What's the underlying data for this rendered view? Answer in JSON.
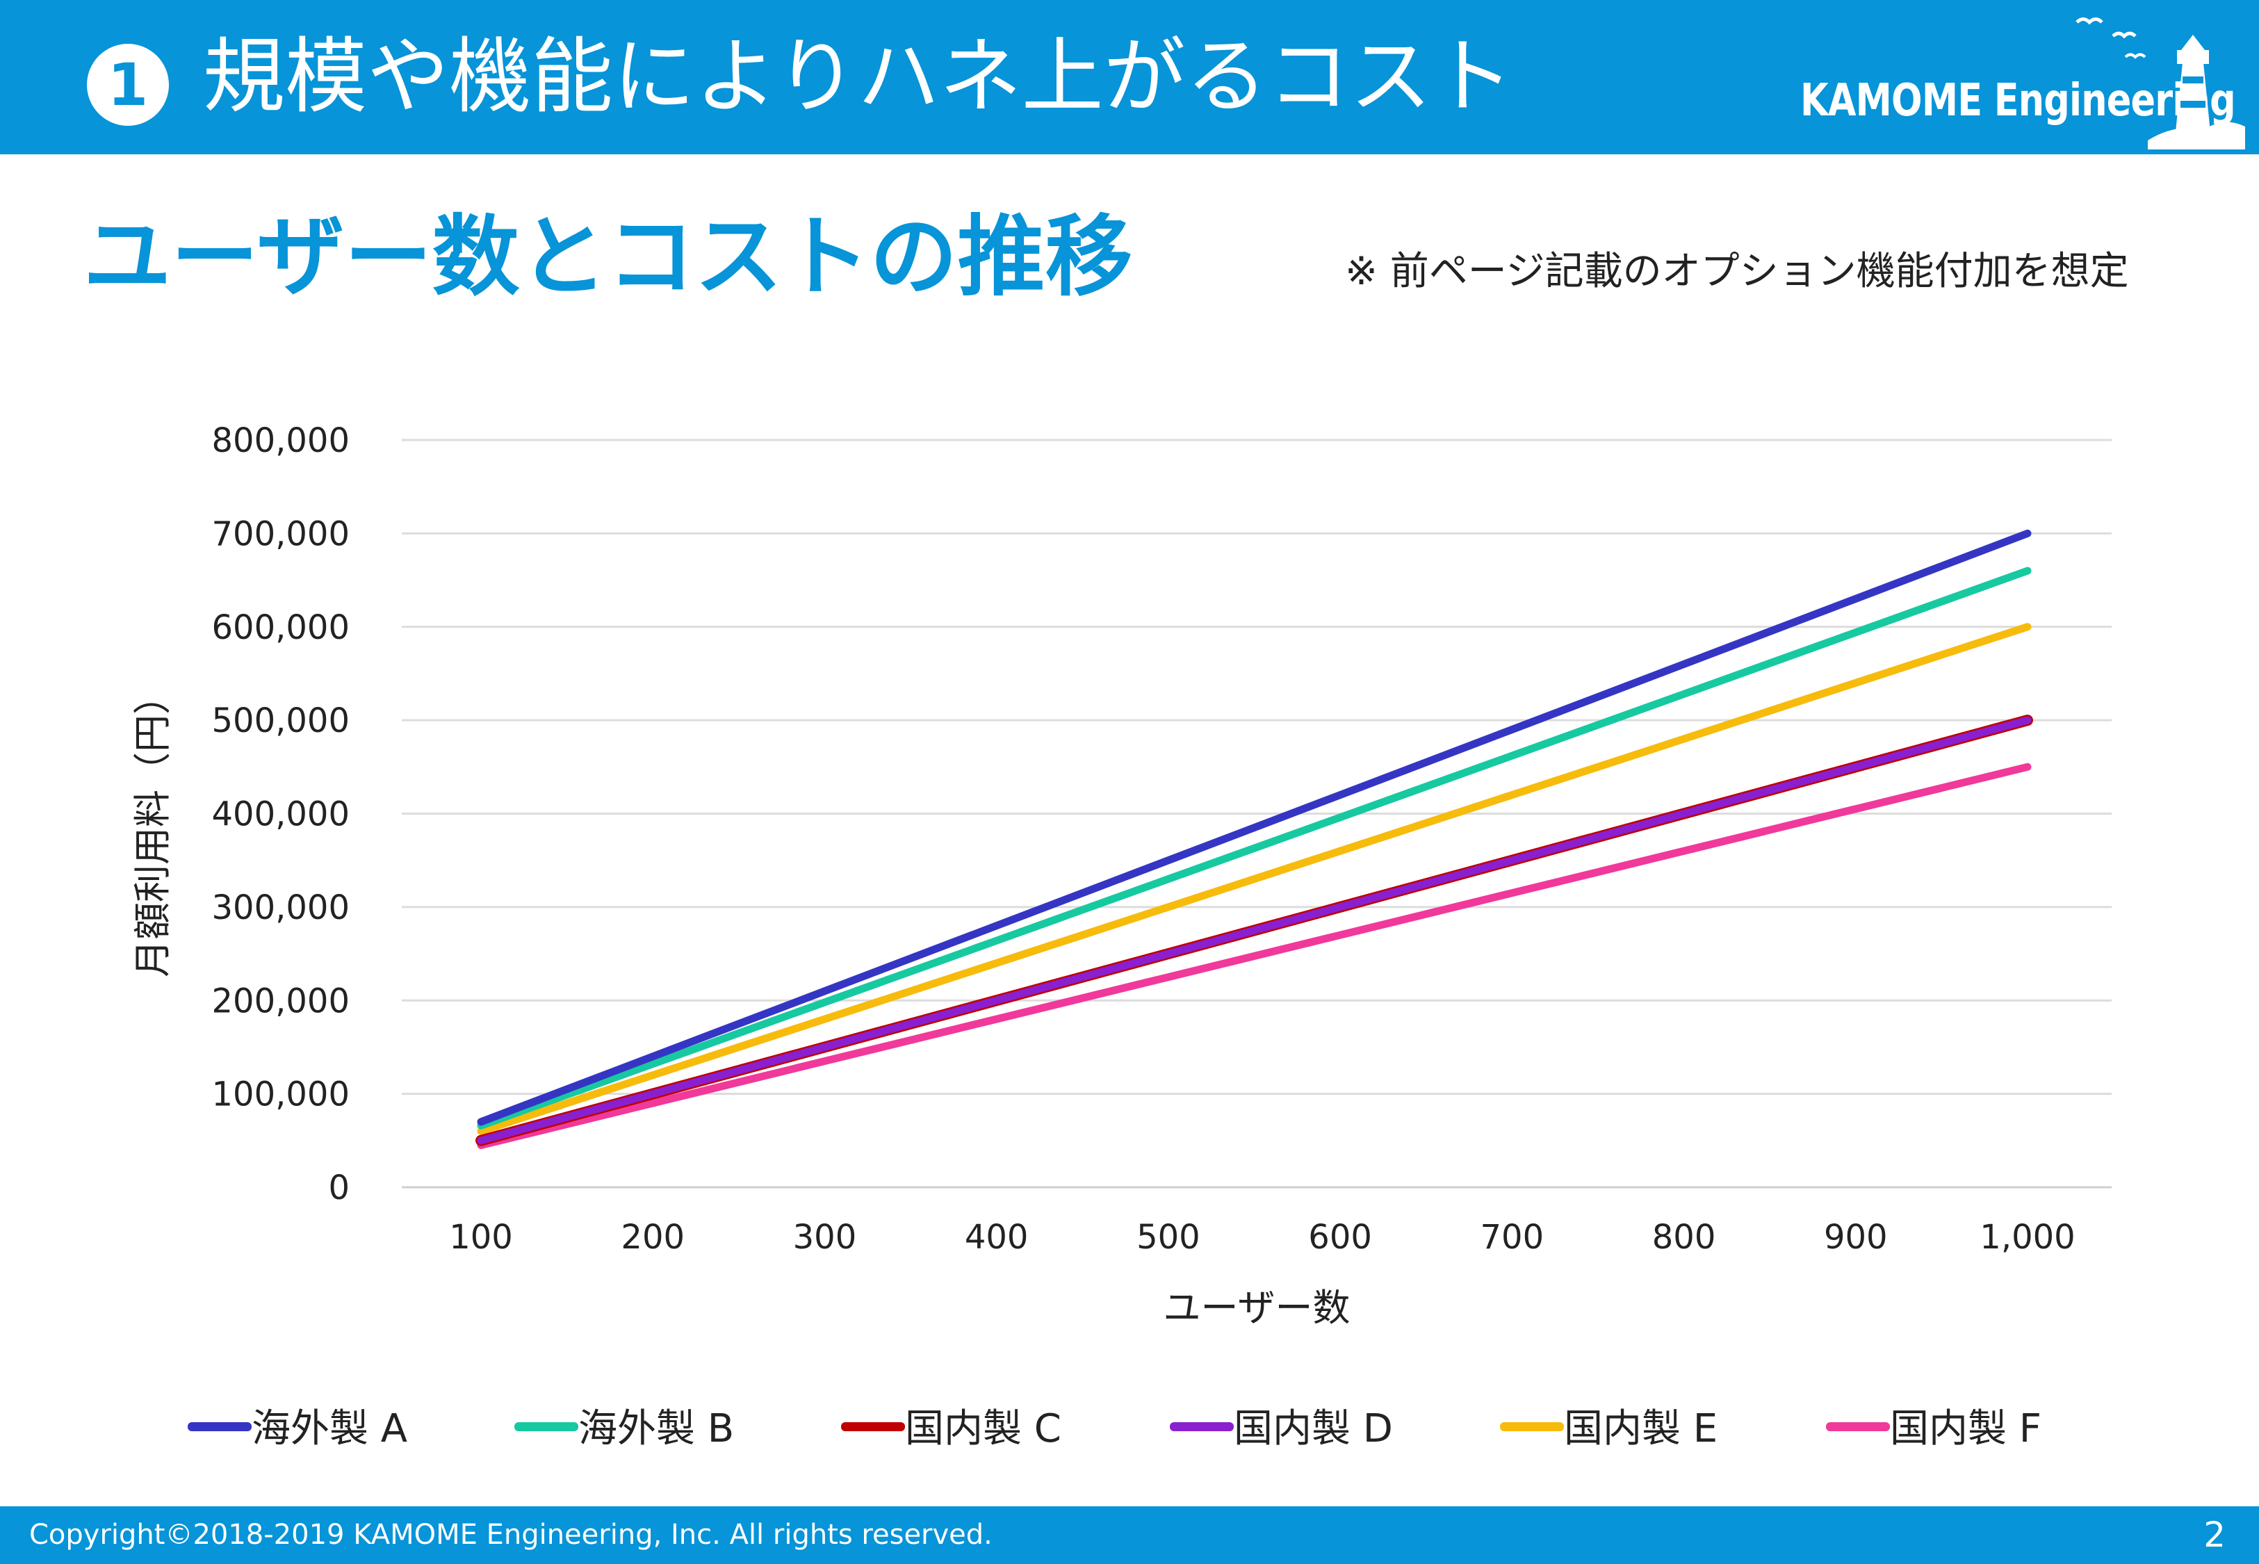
{
  "header": {
    "number": "1",
    "title": "規模や機能によりハネ上がるコスト",
    "logo_text": "KAMOME Engineering"
  },
  "section_title": "ユーザー数とコストの推移",
  "note": "※ 前ページ記載のオプション機能付加を想定",
  "chart_data": {
    "type": "line",
    "title": "",
    "xlabel": "ユーザー数",
    "ylabel": "月額利用料（円）",
    "x": [
      100,
      200,
      300,
      400,
      500,
      600,
      700,
      800,
      900,
      1000
    ],
    "x_tick_labels": [
      "100",
      "200",
      "300",
      "400",
      "500",
      "600",
      "700",
      "800",
      "900",
      "1,000"
    ],
    "y_tick_labels": [
      "0",
      "100,000",
      "200,000",
      "300,000",
      "400,000",
      "500,000",
      "600,000",
      "700,000",
      "800,000"
    ],
    "ylim": [
      0,
      800000
    ],
    "grid": true,
    "legend_position": "bottom",
    "series": [
      {
        "name": "海外製 A",
        "color": "#3535c4",
        "values": [
          70000,
          140000,
          210000,
          280000,
          350000,
          420000,
          490000,
          560000,
          630000,
          700000
        ]
      },
      {
        "name": "海外製 B",
        "color": "#17c9a0",
        "values": [
          66000,
          132000,
          198000,
          264000,
          330000,
          396000,
          462000,
          528000,
          594000,
          660000
        ]
      },
      {
        "name": "国内製 C",
        "color": "#c00000",
        "values": [
          50000,
          100000,
          150000,
          200000,
          250000,
          300000,
          350000,
          400000,
          450000,
          500000
        ]
      },
      {
        "name": "国内製 D",
        "color": "#8a1fd0",
        "values": [
          50000,
          100000,
          150000,
          200000,
          250000,
          300000,
          350000,
          400000,
          450000,
          500000
        ]
      },
      {
        "name": "国内製 E",
        "color": "#f7bb0c",
        "values": [
          60000,
          120000,
          180000,
          240000,
          300000,
          360000,
          420000,
          480000,
          540000,
          600000
        ]
      },
      {
        "name": "国内製 F",
        "color": "#f0399a",
        "values": [
          45000,
          90000,
          135000,
          180000,
          225000,
          270000,
          315000,
          360000,
          405000,
          450000
        ]
      }
    ]
  },
  "footer": {
    "copyright": "Copyright©2018-2019 KAMOME Engineering, Inc. All rights reserved.",
    "page": "2"
  }
}
